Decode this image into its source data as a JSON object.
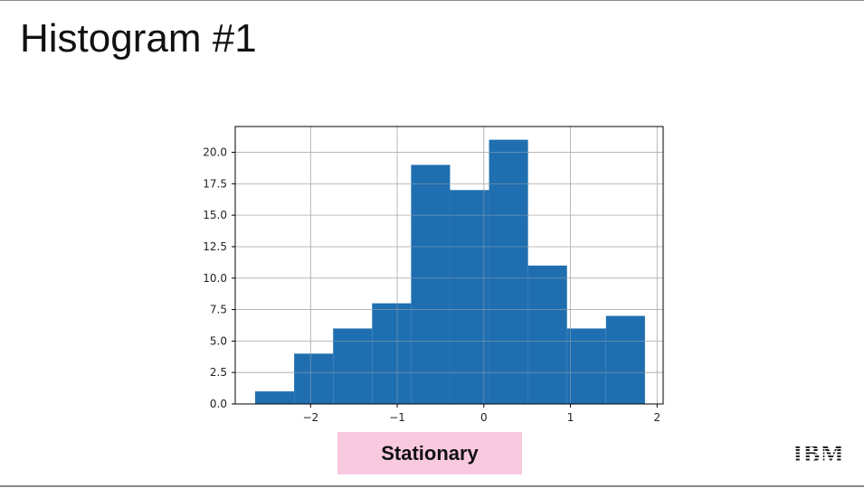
{
  "slide": {
    "title": "Histogram #1",
    "caption": "Stationary",
    "logo_text": "IBM",
    "caption_bg": "#f9c9e0"
  },
  "chart_data": {
    "type": "bar",
    "bar_color": "#1f6fb0",
    "bins": [
      {
        "x0": -2.64,
        "x1": -2.19,
        "count": 1
      },
      {
        "x0": -2.19,
        "x1": -1.74,
        "count": 4
      },
      {
        "x0": -1.74,
        "x1": -1.29,
        "count": 6
      },
      {
        "x0": -1.29,
        "x1": -0.84,
        "count": 8
      },
      {
        "x0": -0.84,
        "x1": -0.39,
        "count": 19
      },
      {
        "x0": -0.39,
        "x1": 0.06,
        "count": 17
      },
      {
        "x0": 0.06,
        "x1": 0.51,
        "count": 21
      },
      {
        "x0": 0.51,
        "x1": 0.96,
        "count": 11
      },
      {
        "x0": 0.96,
        "x1": 1.41,
        "count": 6
      },
      {
        "x0": 1.41,
        "x1": 1.86,
        "count": 7
      }
    ],
    "xlim": [
      -2.87,
      2.07
    ],
    "ylim": [
      0,
      22.05
    ],
    "xticks": [
      -2,
      -1,
      0,
      1,
      2
    ],
    "xtick_labels": [
      "−2",
      "−1",
      "0",
      "1",
      "2"
    ],
    "yticks": [
      0,
      2.5,
      5,
      7.5,
      10,
      12.5,
      15,
      17.5,
      20
    ],
    "ytick_labels": [
      "0.0",
      "2.5",
      "5.0",
      "7.5",
      "10.0",
      "12.5",
      "15.0",
      "17.5",
      "20.0"
    ],
    "grid": true,
    "legend": "none"
  }
}
